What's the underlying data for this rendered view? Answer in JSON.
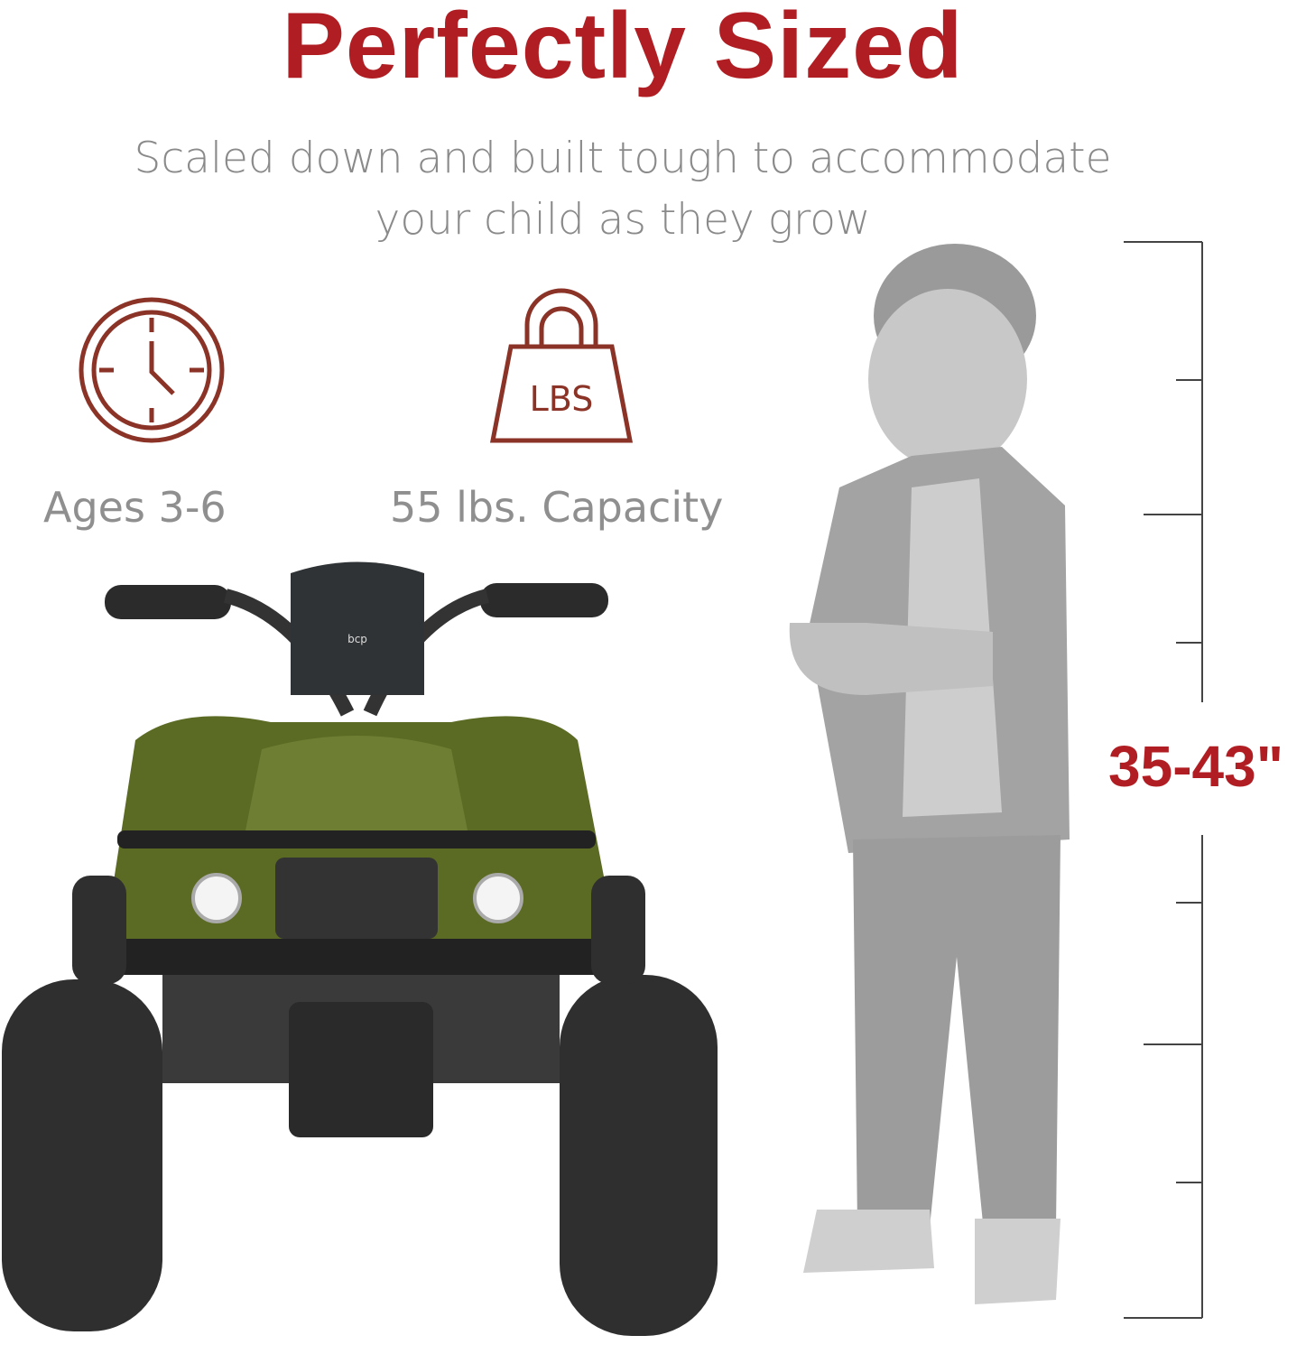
{
  "title": "Perfectly Sized",
  "subtitle": "Scaled down and built tough to accommodate your child as they grow",
  "features": [
    {
      "icon": "clock-icon",
      "label": "Ages 3-6"
    },
    {
      "icon": "weight-icon",
      "icon_text": "LBS",
      "label": "55 lbs. Capacity"
    }
  ],
  "height_range": "35-43\"",
  "product_logo": "bcp",
  "colors": {
    "accent": "#b01e23",
    "icon": "#8b3327",
    "text_gray": "#8a8a8a",
    "atv_green": "#5b6b24",
    "silhouette": "#a8a8a8"
  }
}
